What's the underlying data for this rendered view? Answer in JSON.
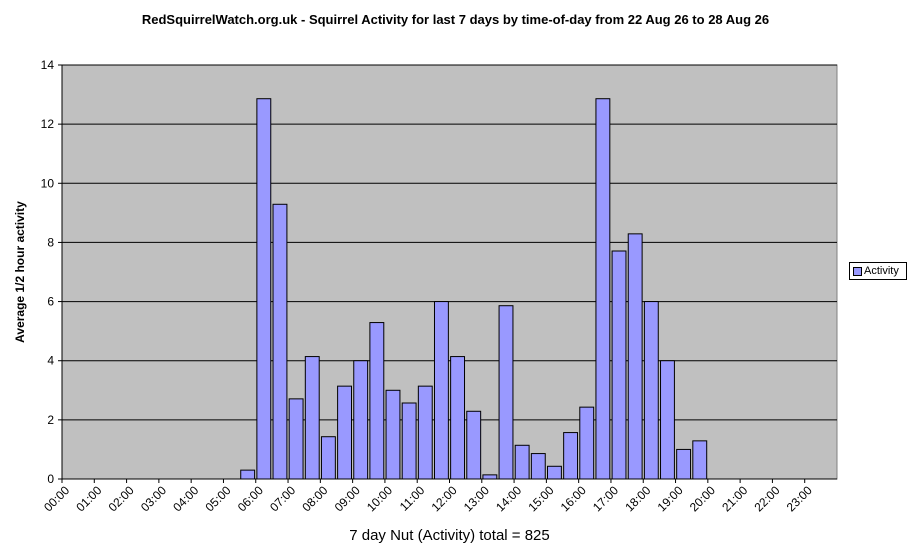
{
  "chart_data": {
    "type": "bar",
    "title": "RedSquirrelWatch.org.uk - Squirrel Activity for last 7 days by time-of-day from 22 Aug 26 to 28 Aug 26",
    "xlabel": "7 day Nut (Activity) total = 825",
    "ylabel": "Average 1/2 hour activity",
    "ylim": [
      0,
      14
    ],
    "yticks": [
      0,
      2,
      4,
      6,
      8,
      10,
      12,
      14
    ],
    "grid": true,
    "legend_position": "right",
    "categories": [
      "00:00",
      "00:30",
      "01:00",
      "01:30",
      "02:00",
      "02:30",
      "03:00",
      "03:30",
      "04:00",
      "04:30",
      "05:00",
      "05:30",
      "06:00",
      "06:30",
      "07:00",
      "07:30",
      "08:00",
      "08:30",
      "09:00",
      "09:30",
      "10:00",
      "10:30",
      "11:00",
      "11:30",
      "12:00",
      "12:30",
      "13:00",
      "13:30",
      "14:00",
      "14:30",
      "15:00",
      "15:30",
      "16:00",
      "16:30",
      "17:00",
      "17:30",
      "18:00",
      "18:30",
      "19:00",
      "19:30",
      "20:00",
      "20:30",
      "21:00",
      "21:30",
      "22:00",
      "22:30",
      "23:00",
      "23:30"
    ],
    "tick_labels": [
      "00:00",
      "01:00",
      "02:00",
      "03:00",
      "04:00",
      "05:00",
      "06:00",
      "07:00",
      "08:00",
      "09:00",
      "10:00",
      "11:00",
      "12:00",
      "13:00",
      "14:00",
      "15:00",
      "16:00",
      "17:00",
      "18:00",
      "19:00",
      "20:00",
      "21:00",
      "22:00",
      "23:00"
    ],
    "series": [
      {
        "name": "Activity",
        "values": [
          0,
          0,
          0,
          0,
          0,
          0,
          0,
          0,
          0,
          0,
          0,
          0.3,
          12.86,
          9.29,
          2.71,
          4.14,
          1.43,
          3.14,
          4.0,
          5.29,
          3.0,
          2.57,
          3.14,
          6.0,
          4.14,
          2.29,
          0.14,
          5.86,
          1.14,
          0.86,
          0.43,
          1.57,
          2.43,
          12.86,
          7.71,
          8.29,
          6.0,
          4.0,
          1.0,
          1.29,
          0,
          0,
          0,
          0,
          0,
          0,
          0,
          0
        ]
      }
    ],
    "colors": {
      "plot_bg": "#c0c0c0",
      "bar_fill": "#9999ff",
      "bar_stroke": "#000000",
      "grid": "#000000"
    }
  }
}
